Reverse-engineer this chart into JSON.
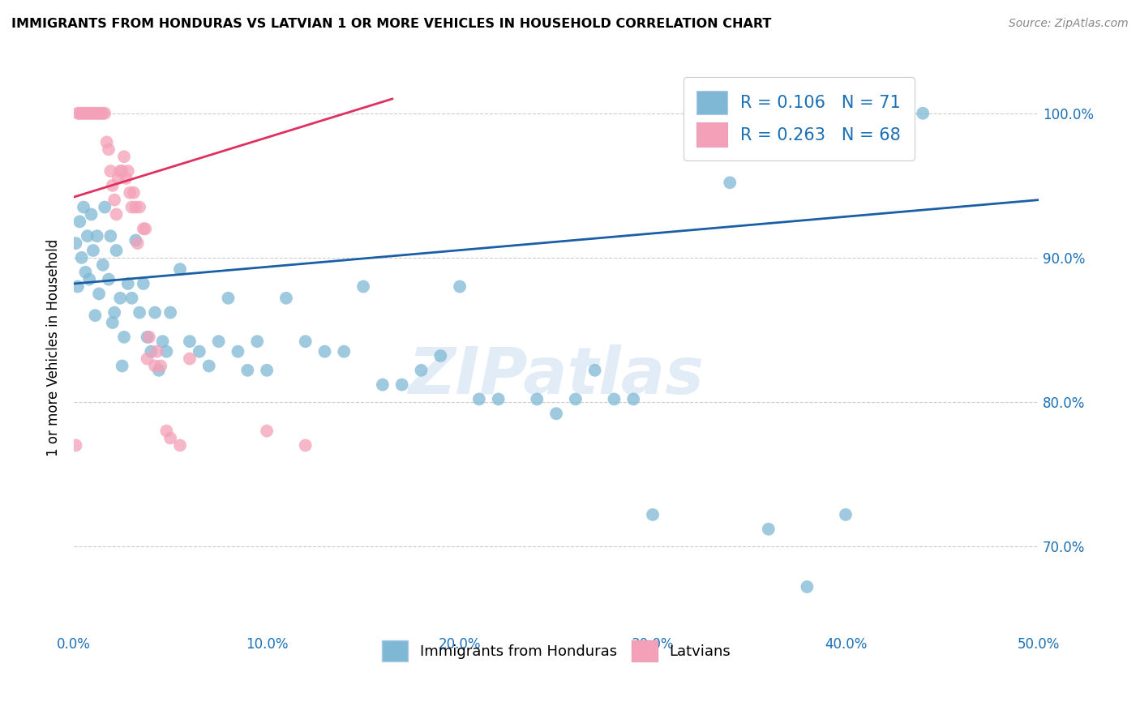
{
  "title": "IMMIGRANTS FROM HONDURAS VS LATVIAN 1 OR MORE VEHICLES IN HOUSEHOLD CORRELATION CHART",
  "source": "Source: ZipAtlas.com",
  "ylabel": "1 or more Vehicles in Household",
  "xlabel_ticks": [
    "0.0%",
    "10.0%",
    "20.0%",
    "30.0%",
    "40.0%",
    "50.0%"
  ],
  "ytick_vals": [
    0.7,
    0.8,
    0.9,
    1.0
  ],
  "ytick_labels": [
    "70.0%",
    "80.0%",
    "90.0%",
    "100.0%"
  ],
  "xlim": [
    0.0,
    0.5
  ],
  "ylim": [
    0.64,
    1.035
  ],
  "legend1_label": "R = 0.106   N = 71",
  "legend2_label": "R = 0.263   N = 68",
  "legend_bottom_label1": "Immigrants from Honduras",
  "legend_bottom_label2": "Latvians",
  "blue_color": "#7eb8d4",
  "pink_color": "#f4a0b8",
  "blue_line_color": "#1a5fa6",
  "pink_line_color": "#e03060",
  "watermark": "ZIPatlas",
  "scatter_blue": [
    [
      0.001,
      0.91
    ],
    [
      0.002,
      0.88
    ],
    [
      0.003,
      0.925
    ],
    [
      0.004,
      0.9
    ],
    [
      0.005,
      0.935
    ],
    [
      0.006,
      0.89
    ],
    [
      0.007,
      0.915
    ],
    [
      0.008,
      0.885
    ],
    [
      0.009,
      0.93
    ],
    [
      0.01,
      0.905
    ],
    [
      0.011,
      0.86
    ],
    [
      0.012,
      0.915
    ],
    [
      0.013,
      0.875
    ],
    [
      0.015,
      0.895
    ],
    [
      0.016,
      0.935
    ],
    [
      0.018,
      0.885
    ],
    [
      0.019,
      0.915
    ],
    [
      0.02,
      0.855
    ],
    [
      0.021,
      0.862
    ],
    [
      0.022,
      0.905
    ],
    [
      0.024,
      0.872
    ],
    [
      0.025,
      0.825
    ],
    [
      0.026,
      0.845
    ],
    [
      0.028,
      0.882
    ],
    [
      0.03,
      0.872
    ],
    [
      0.032,
      0.912
    ],
    [
      0.034,
      0.862
    ],
    [
      0.036,
      0.882
    ],
    [
      0.038,
      0.845
    ],
    [
      0.04,
      0.835
    ],
    [
      0.042,
      0.862
    ],
    [
      0.044,
      0.822
    ],
    [
      0.046,
      0.842
    ],
    [
      0.048,
      0.835
    ],
    [
      0.05,
      0.862
    ],
    [
      0.055,
      0.892
    ],
    [
      0.06,
      0.842
    ],
    [
      0.065,
      0.835
    ],
    [
      0.07,
      0.825
    ],
    [
      0.075,
      0.842
    ],
    [
      0.08,
      0.872
    ],
    [
      0.085,
      0.835
    ],
    [
      0.09,
      0.822
    ],
    [
      0.095,
      0.842
    ],
    [
      0.1,
      0.822
    ],
    [
      0.11,
      0.872
    ],
    [
      0.12,
      0.842
    ],
    [
      0.13,
      0.835
    ],
    [
      0.14,
      0.835
    ],
    [
      0.15,
      0.88
    ],
    [
      0.16,
      0.812
    ],
    [
      0.17,
      0.812
    ],
    [
      0.18,
      0.822
    ],
    [
      0.19,
      0.832
    ],
    [
      0.2,
      0.88
    ],
    [
      0.21,
      0.802
    ],
    [
      0.22,
      0.802
    ],
    [
      0.24,
      0.802
    ],
    [
      0.25,
      0.792
    ],
    [
      0.26,
      0.802
    ],
    [
      0.27,
      0.822
    ],
    [
      0.28,
      0.802
    ],
    [
      0.29,
      0.802
    ],
    [
      0.3,
      0.722
    ],
    [
      0.34,
      0.952
    ],
    [
      0.36,
      0.712
    ],
    [
      0.38,
      0.672
    ],
    [
      0.4,
      0.722
    ],
    [
      0.44,
      1.0
    ]
  ],
  "scatter_pink": [
    [
      0.001,
      0.77
    ],
    [
      0.002,
      1.0
    ],
    [
      0.003,
      1.0
    ],
    [
      0.004,
      1.0
    ],
    [
      0.005,
      1.0
    ],
    [
      0.006,
      1.0
    ],
    [
      0.007,
      1.0
    ],
    [
      0.008,
      1.0
    ],
    [
      0.009,
      1.0
    ],
    [
      0.01,
      1.0
    ],
    [
      0.011,
      1.0
    ],
    [
      0.012,
      1.0
    ],
    [
      0.013,
      1.0
    ],
    [
      0.014,
      1.0
    ],
    [
      0.015,
      1.0
    ],
    [
      0.016,
      1.0
    ],
    [
      0.017,
      0.98
    ],
    [
      0.018,
      0.975
    ],
    [
      0.019,
      0.96
    ],
    [
      0.02,
      0.95
    ],
    [
      0.021,
      0.94
    ],
    [
      0.022,
      0.93
    ],
    [
      0.023,
      0.955
    ],
    [
      0.024,
      0.96
    ],
    [
      0.025,
      0.96
    ],
    [
      0.026,
      0.97
    ],
    [
      0.027,
      0.955
    ],
    [
      0.028,
      0.96
    ],
    [
      0.029,
      0.945
    ],
    [
      0.03,
      0.935
    ],
    [
      0.031,
      0.945
    ],
    [
      0.032,
      0.935
    ],
    [
      0.033,
      0.91
    ],
    [
      0.034,
      0.935
    ],
    [
      0.036,
      0.92
    ],
    [
      0.037,
      0.92
    ],
    [
      0.038,
      0.83
    ],
    [
      0.039,
      0.845
    ],
    [
      0.042,
      0.825
    ],
    [
      0.043,
      0.835
    ],
    [
      0.045,
      0.825
    ],
    [
      0.048,
      0.78
    ],
    [
      0.05,
      0.775
    ],
    [
      0.055,
      0.77
    ],
    [
      0.06,
      0.83
    ],
    [
      0.1,
      0.78
    ],
    [
      0.12,
      0.77
    ]
  ],
  "blue_trend_x": [
    0.0,
    0.5
  ],
  "blue_trend_y": [
    0.882,
    0.94
  ],
  "pink_trend_x": [
    0.0,
    0.165
  ],
  "pink_trend_y": [
    0.942,
    1.01
  ]
}
